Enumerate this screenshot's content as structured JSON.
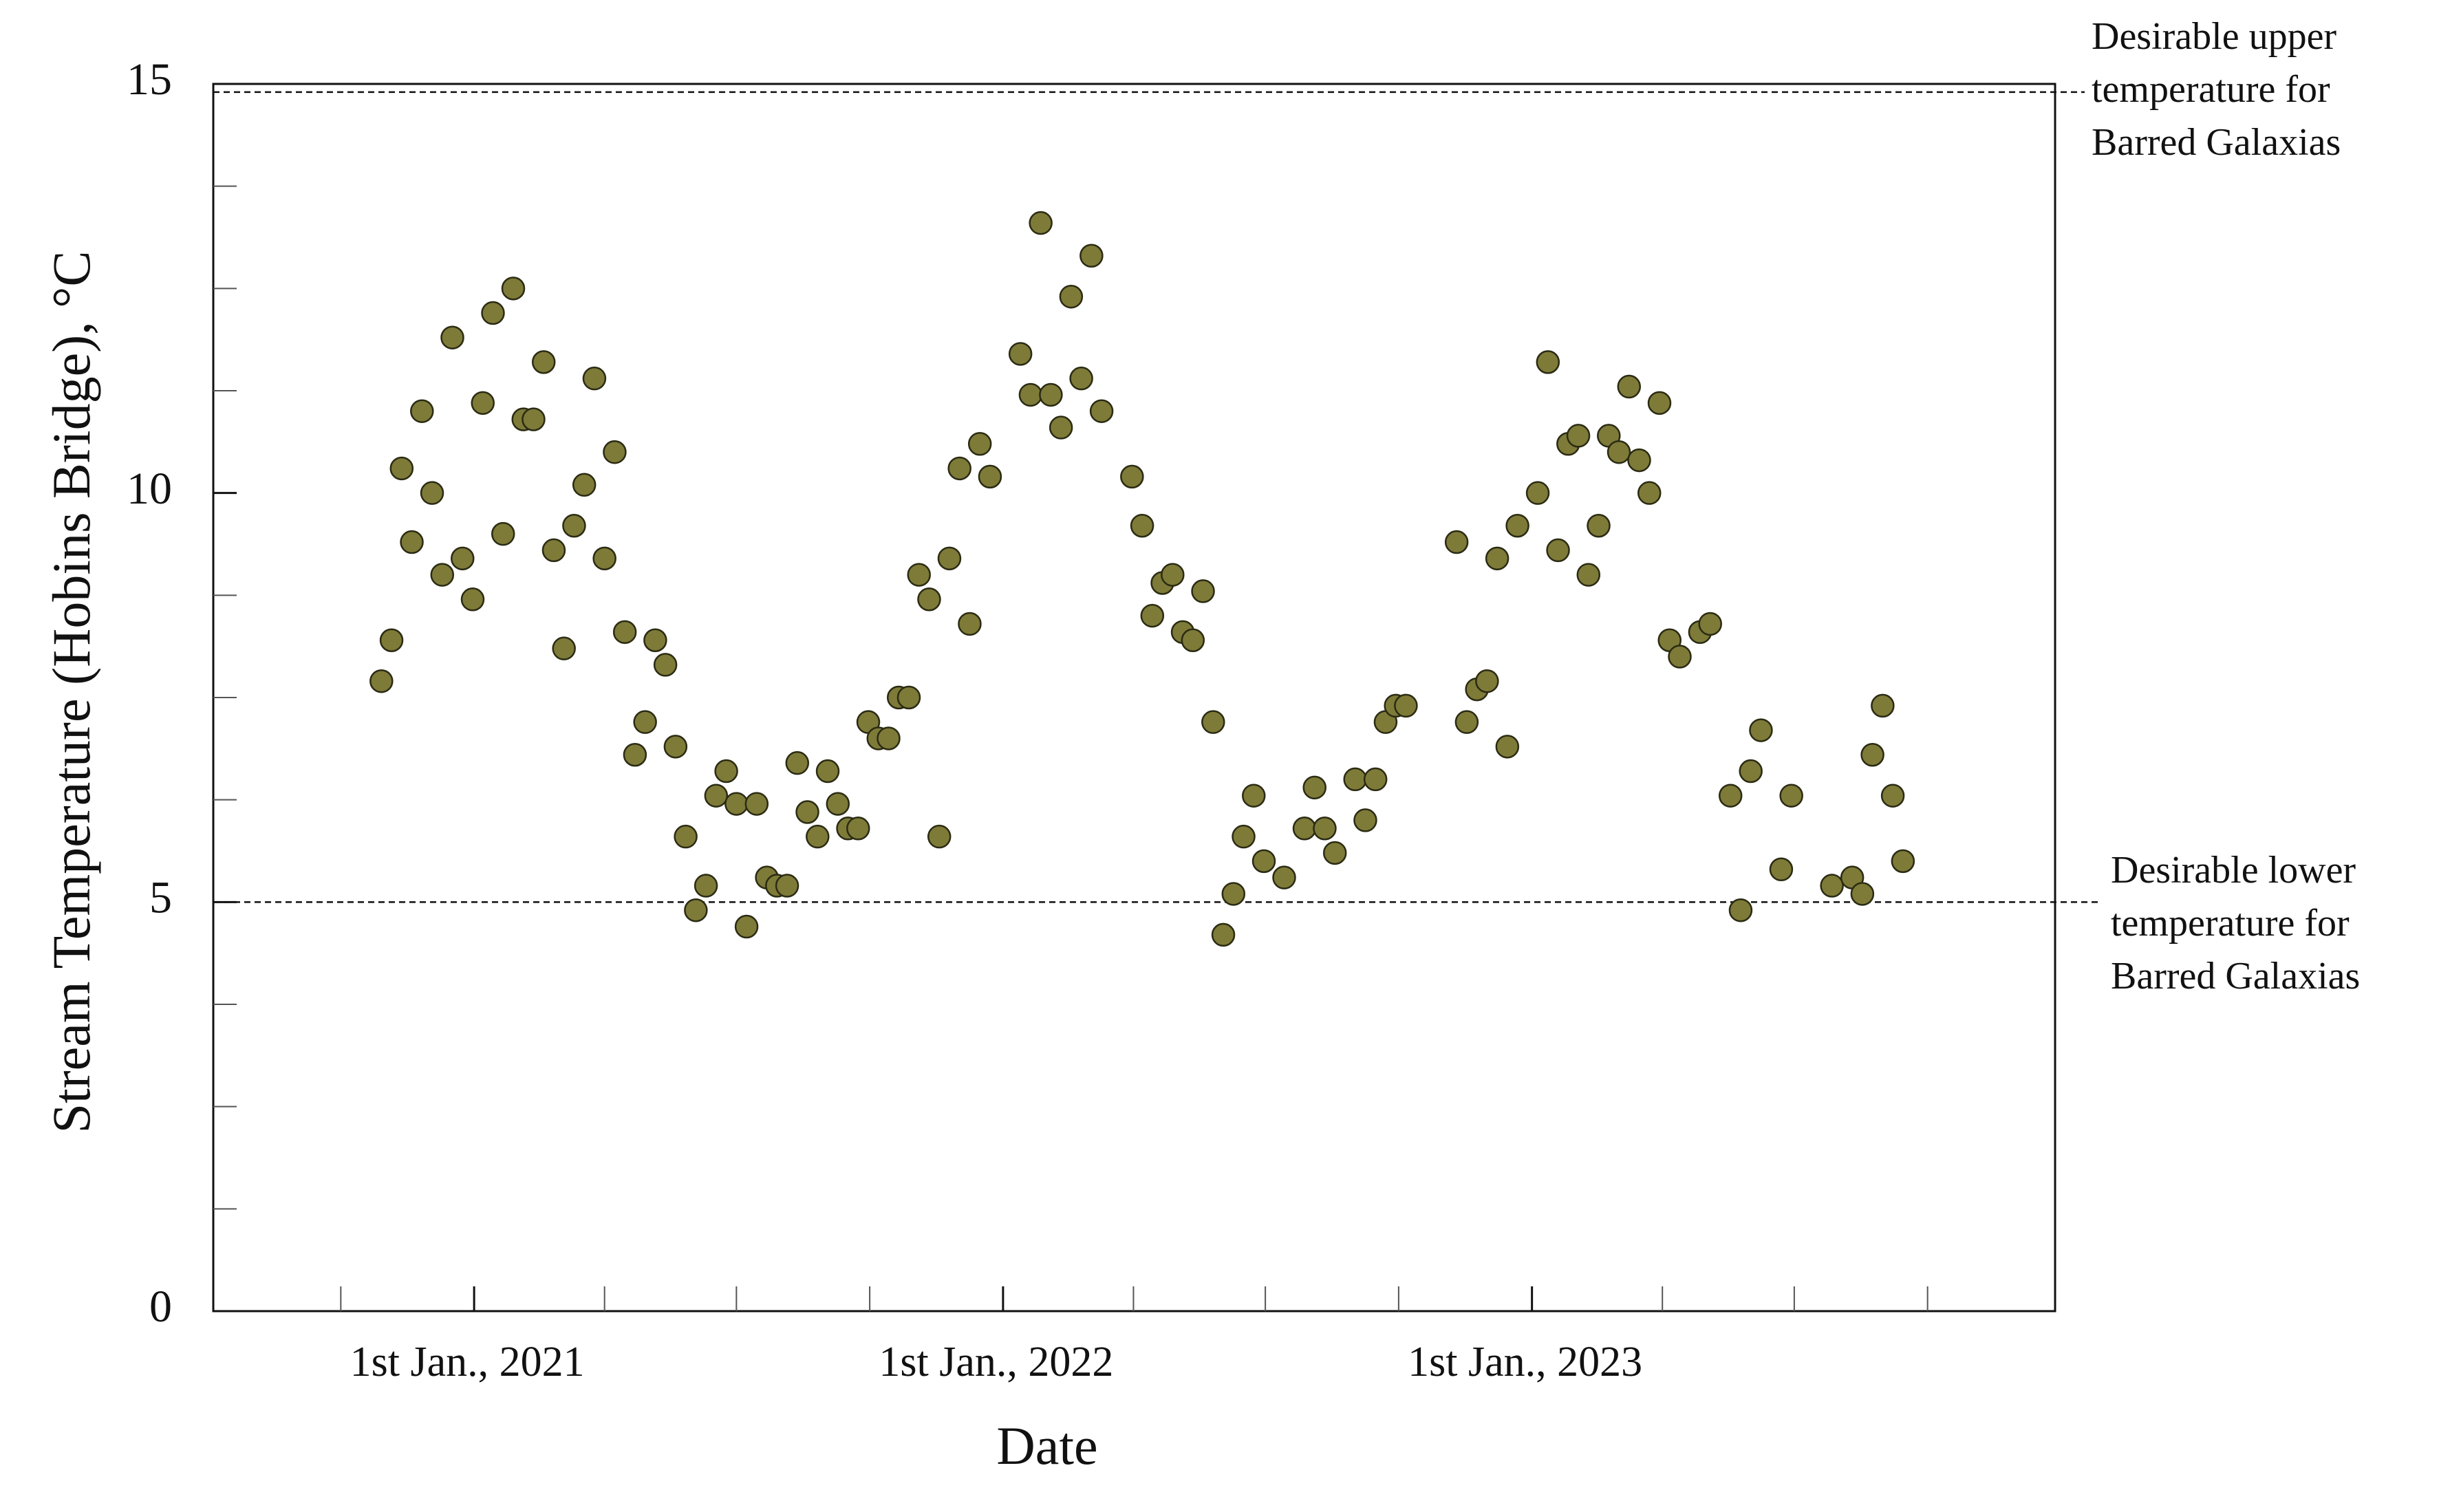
{
  "chart_data": {
    "type": "scatter",
    "x_label": "Date",
    "y_label": "Stream Temperature (Hobins Bridge), °C",
    "color": "#7e7b38",
    "xlim": [
      "2020-07-05",
      "2023-12-28"
    ],
    "xticks": [
      {
        "value": "2021-01-01",
        "label": "1st Jan., 2021"
      },
      {
        "value": "2022-01-01",
        "label": "1st Jan., 2022"
      },
      {
        "value": "2023-01-01",
        "label": "1st Jan., 2023"
      }
    ],
    "x_minor_ticks": [
      "2020-10-01",
      "2021-04-01",
      "2021-07-01",
      "2021-10-01",
      "2022-04-01",
      "2022-07-01",
      "2022-10-01",
      "2023-04-01",
      "2023-07-01",
      "2023-10-01"
    ],
    "ylim": [
      0,
      15
    ],
    "yticks": [
      0,
      5,
      10,
      15
    ],
    "y_minor_ticks": [
      1.25,
      2.5,
      3.75,
      6.25,
      7.5,
      8.75,
      11.25,
      12.5,
      13.75
    ],
    "reference_lines": [
      {
        "value": 14.9,
        "label": [
          "Desirable upper",
          "temperature for",
          "Barred Galaxias"
        ]
      },
      {
        "value": 5,
        "label": [
          "Desirable lower",
          "temperature for",
          "Barred Galaxias"
        ]
      }
    ],
    "x": [
      "2020-10-29",
      "2020-11-05",
      "2020-11-12",
      "2020-11-19",
      "2020-11-26",
      "2020-12-03",
      "2020-12-10",
      "2020-12-17",
      "2020-12-24",
      "2020-12-31",
      "2021-01-07",
      "2021-01-14",
      "2021-01-21",
      "2021-01-28",
      "2021-02-04",
      "2021-02-11",
      "2021-02-18",
      "2021-02-25",
      "2021-03-04",
      "2021-03-11",
      "2021-03-18",
      "2021-03-25",
      "2021-04-01",
      "2021-04-08",
      "2021-04-15",
      "2021-04-22",
      "2021-04-29",
      "2021-05-06",
      "2021-05-13",
      "2021-05-20",
      "2021-05-27",
      "2021-06-03",
      "2021-06-10",
      "2021-06-17",
      "2021-06-24",
      "2021-07-01",
      "2021-07-08",
      "2021-07-15",
      "2021-07-22",
      "2021-07-29",
      "2021-08-05",
      "2021-08-12",
      "2021-08-19",
      "2021-08-26",
      "2021-09-02",
      "2021-09-09",
      "2021-09-16",
      "2021-09-23",
      "2021-09-30",
      "2021-10-07",
      "2021-10-14",
      "2021-10-21",
      "2021-10-28",
      "2021-11-04",
      "2021-11-11",
      "2021-11-18",
      "2021-11-25",
      "2021-12-02",
      "2021-12-09",
      "2021-12-16",
      "2021-12-23",
      "2022-01-13",
      "2022-01-20",
      "2022-01-27",
      "2022-02-03",
      "2022-02-10",
      "2022-02-17",
      "2022-02-24",
      "2022-03-03",
      "2022-03-10",
      "2022-03-31",
      "2022-04-07",
      "2022-04-14",
      "2022-04-21",
      "2022-04-28",
      "2022-05-05",
      "2022-05-12",
      "2022-05-19",
      "2022-05-26",
      "2022-06-02",
      "2022-06-09",
      "2022-06-16",
      "2022-06-23",
      "2022-06-30",
      "2022-07-14",
      "2022-07-28",
      "2022-08-04",
      "2022-08-11",
      "2022-08-18",
      "2022-09-01",
      "2022-09-08",
      "2022-09-15",
      "2022-09-22",
      "2022-09-29",
      "2022-10-06",
      "2022-11-10",
      "2022-11-17",
      "2022-11-24",
      "2022-12-01",
      "2022-12-08",
      "2022-12-15",
      "2022-12-22",
      "2023-01-05",
      "2023-01-12",
      "2023-01-19",
      "2023-01-26",
      "2023-02-02",
      "2023-02-09",
      "2023-02-16",
      "2023-02-23",
      "2023-03-02",
      "2023-03-09",
      "2023-03-16",
      "2023-03-23",
      "2023-03-30",
      "2023-04-06",
      "2023-04-13",
      "2023-04-27",
      "2023-05-04",
      "2023-05-18",
      "2023-05-25",
      "2023-06-01",
      "2023-06-08",
      "2023-06-22",
      "2023-06-29",
      "2023-07-27",
      "2023-08-10",
      "2023-08-17",
      "2023-08-24",
      "2023-08-31",
      "2023-09-07",
      "2023-09-14"
    ],
    "values": [
      7.7,
      8.2,
      10.3,
      9.4,
      11.0,
      10.0,
      9.0,
      11.9,
      9.2,
      8.7,
      11.1,
      12.2,
      9.5,
      12.5,
      10.9,
      10.9,
      11.6,
      9.3,
      8.1,
      9.6,
      10.1,
      11.4,
      9.2,
      10.5,
      8.3,
      6.8,
      7.2,
      8.2,
      7.9,
      6.9,
      5.8,
      4.9,
      5.2,
      6.3,
      6.6,
      6.2,
      4.7,
      6.2,
      5.3,
      5.2,
      5.2,
      6.7,
      6.1,
      5.8,
      6.6,
      6.2,
      5.9,
      5.9,
      7.2,
      7.0,
      7.0,
      7.5,
      7.5,
      9.0,
      8.7,
      5.8,
      9.2,
      10.3,
      8.4,
      10.6,
      10.2,
      11.7,
      11.2,
      13.3,
      11.2,
      10.8,
      12.4,
      11.4,
      12.9,
      11.0,
      10.2,
      9.6,
      8.5,
      8.9,
      9.0,
      8.3,
      8.2,
      8.8,
      7.2,
      4.6,
      5.1,
      5.8,
      6.3,
      5.5,
      5.3,
      5.9,
      6.4,
      5.9,
      5.6,
      6.5,
      6.0,
      6.5,
      7.2,
      7.4,
      7.4,
      9.4,
      7.2,
      7.6,
      7.7,
      9.2,
      6.9,
      9.6,
      10.0,
      11.6,
      9.3,
      10.6,
      10.7,
      9.0,
      9.6,
      10.7,
      10.5,
      11.3,
      10.4,
      10.0,
      11.1,
      8.2,
      8.0,
      8.3,
      8.4,
      6.3,
      4.9,
      6.6,
      7.1,
      5.4,
      6.3,
      5.2,
      5.3,
      5.1,
      6.8,
      7.4,
      6.3,
      5.5
    ]
  }
}
